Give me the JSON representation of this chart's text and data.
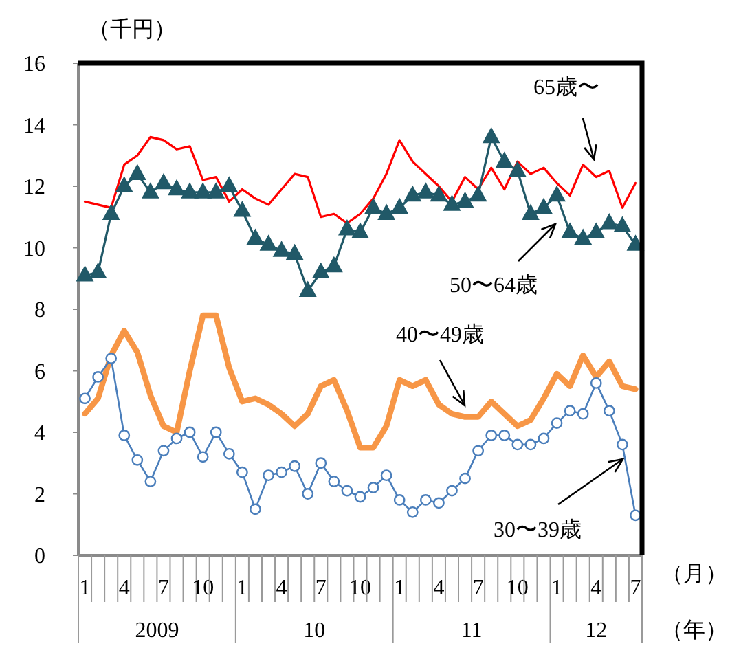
{
  "chart_data": {
    "type": "line",
    "ylabel": "（千円）",
    "xlabel": "（月）",
    "categories": [
      "1",
      null,
      null,
      "4",
      null,
      null,
      "7",
      null,
      null,
      "10",
      null,
      null,
      "1",
      null,
      null,
      "4",
      null,
      null,
      "7",
      null,
      null,
      "10",
      null,
      null,
      "1",
      null,
      null,
      "4",
      null,
      null,
      "7",
      null,
      null,
      "10",
      null,
      null,
      "1",
      null,
      null,
      "4",
      null,
      null,
      "7"
    ],
    "ylim": [
      0,
      16
    ],
    "yticks": [
      0,
      2,
      4,
      6,
      8,
      10,
      12,
      14,
      16
    ],
    "annotations": [
      "2009",
      "10",
      "11",
      "12",
      "（年）"
    ],
    "series": [
      {
        "name": "65歳〜",
        "color": "#ff0000",
        "marker": "none",
        "values": [
          11.5,
          11.4,
          11.3,
          12.7,
          13.0,
          13.6,
          13.5,
          13.2,
          13.3,
          12.2,
          12.3,
          11.5,
          11.9,
          11.6,
          11.4,
          11.9,
          12.4,
          12.3,
          11.0,
          11.1,
          10.8,
          11.1,
          11.6,
          12.4,
          13.5,
          12.8,
          12.4,
          12.0,
          11.5,
          12.3,
          11.9,
          12.6,
          11.9,
          12.8,
          12.4,
          12.6,
          12.1,
          11.7,
          12.7,
          12.3,
          12.5,
          11.3,
          12.1
        ]
      },
      {
        "name": "50〜64歳",
        "color": "#215968",
        "marker": "triangle",
        "values": [
          9.1,
          9.2,
          11.1,
          12.0,
          12.4,
          11.8,
          12.1,
          11.9,
          11.8,
          11.8,
          11.8,
          12.0,
          11.2,
          10.3,
          10.1,
          9.9,
          9.8,
          8.6,
          9.2,
          9.4,
          10.6,
          10.5,
          11.3,
          11.1,
          11.3,
          11.7,
          11.8,
          11.7,
          11.4,
          11.5,
          11.7,
          13.6,
          12.8,
          12.5,
          11.1,
          11.3,
          11.7,
          10.5,
          10.3,
          10.5,
          10.8,
          10.7,
          10.1
        ]
      },
      {
        "name": "40〜49歳",
        "color": "#f79646",
        "marker": "none",
        "values": [
          4.6,
          5.1,
          6.5,
          7.3,
          6.6,
          5.2,
          4.2,
          4.0,
          6.0,
          7.8,
          7.8,
          6.1,
          5.0,
          5.1,
          4.9,
          4.6,
          4.2,
          4.6,
          5.5,
          5.7,
          4.7,
          3.5,
          3.5,
          4.2,
          5.7,
          5.5,
          5.7,
          4.9,
          4.6,
          4.5,
          4.5,
          5.0,
          4.6,
          4.2,
          4.4,
          5.1,
          5.9,
          5.5,
          6.5,
          5.8,
          6.3,
          5.5,
          5.4
        ]
      },
      {
        "name": "30〜39歳",
        "color": "#4a7ebb",
        "marker": "circle",
        "values": [
          5.1,
          5.8,
          6.4,
          3.9,
          3.1,
          2.4,
          3.4,
          3.8,
          4.0,
          3.2,
          4.0,
          3.3,
          2.7,
          1.5,
          2.6,
          2.7,
          2.9,
          2.0,
          3.0,
          2.4,
          2.1,
          1.9,
          2.2,
          2.6,
          1.8,
          1.4,
          1.8,
          1.7,
          2.1,
          2.5,
          3.4,
          3.9,
          3.9,
          3.6,
          3.6,
          3.8,
          4.3,
          4.7,
          4.6,
          5.6,
          4.7,
          3.6,
          1.3
        ]
      }
    ]
  }
}
